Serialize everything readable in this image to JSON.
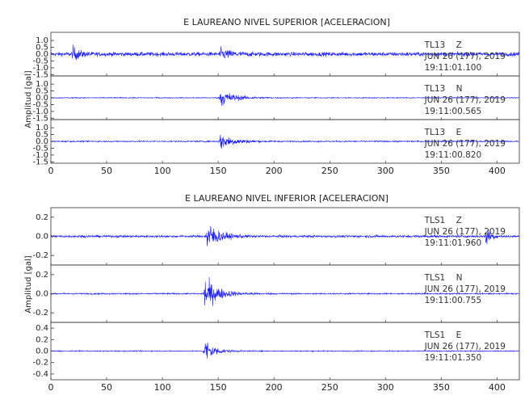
{
  "chart_data": [
    {
      "type": "line",
      "title": "E LAUREANO NIVEL SUPERIOR [ACELERACION]",
      "ylabel": "Amplitud [gal]",
      "xlim": [
        0,
        420
      ],
      "x_ticks": [
        0,
        50,
        100,
        150,
        200,
        250,
        300,
        350,
        400
      ],
      "series_color": "#1a1aff",
      "panels": [
        {
          "station": "TL13",
          "component": "Z",
          "date": "JUN 26 (177), 2019",
          "time": "19:11:01.100",
          "ylim": [
            -1.6,
            1.6
          ],
          "y_ticks": [
            "1.0",
            "0.5",
            "0.0",
            "-0.5",
            "-1.0",
            "-1.5"
          ],
          "y_tick_values": [
            1.0,
            0.5,
            0.0,
            -0.5,
            -1.0,
            -1.5
          ],
          "noise_amplitude": 0.25,
          "events": [
            {
              "t": 20,
              "peak": 0.8,
              "width": 6
            },
            {
              "t": 152,
              "peak": 0.6,
              "width": 10
            }
          ]
        },
        {
          "station": "TL13",
          "component": "N",
          "date": "JUN 26 (177), 2019",
          "time": "19:11:00.565",
          "ylim": [
            -1.6,
            1.6
          ],
          "y_ticks": [
            "1.0",
            "0.5",
            "0.0",
            "-0.5",
            "-1.0",
            "-1.5"
          ],
          "y_tick_values": [
            1.0,
            0.5,
            0.0,
            -0.5,
            -1.0,
            -1.5
          ],
          "noise_amplitude": 0.06,
          "events": [
            {
              "t": 152,
              "peak": 1.1,
              "width": 12
            }
          ]
        },
        {
          "station": "TL13",
          "component": "E",
          "date": "JUN 26 (177), 2019",
          "time": "19:11:00.820",
          "ylim": [
            -1.6,
            1.6
          ],
          "y_ticks": [
            "1.0",
            "0.5",
            "0.0",
            "-0.5",
            "-1.0",
            "-1.5"
          ],
          "y_tick_values": [
            1.0,
            0.5,
            0.0,
            -0.5,
            -1.0,
            -1.5
          ],
          "noise_amplitude": 0.08,
          "events": [
            {
              "t": 152,
              "peak": 1.0,
              "width": 12
            }
          ]
        }
      ]
    },
    {
      "type": "line",
      "title": "E LAUREANO NIVEL INFERIOR [ACELERACION]",
      "ylabel": "Amplitud [gal]",
      "xlim": [
        0,
        420
      ],
      "x_ticks": [
        0,
        50,
        100,
        150,
        200,
        250,
        300,
        350,
        400
      ],
      "series_color": "#1a1aff",
      "panels": [
        {
          "station": "TLS1",
          "component": "Z",
          "date": "JUN 26 (177), 2019",
          "time": "19:11:01.960",
          "ylim": [
            -0.3,
            0.3
          ],
          "y_ticks": [
            "0.2",
            "0.0",
            "-0.2"
          ],
          "y_tick_values": [
            0.2,
            0.0,
            -0.2
          ],
          "noise_amplitude": 0.02,
          "events": [
            {
              "t": 140,
              "peak": 0.26,
              "width": 10
            },
            {
              "t": 390,
              "peak": 0.18,
              "width": 4
            }
          ]
        },
        {
          "station": "TLS1",
          "component": "N",
          "date": "JUN 26 (177), 2019",
          "time": "19:11:00.755",
          "ylim": [
            -0.3,
            0.3
          ],
          "y_ticks": [
            "0.2",
            "0.0",
            "-0.2"
          ],
          "y_tick_values": [
            0.2,
            0.0,
            -0.2
          ],
          "noise_amplitude": 0.012,
          "events": [
            {
              "t": 138,
              "peak": 0.28,
              "width": 12
            }
          ]
        },
        {
          "station": "TLS1",
          "component": "E",
          "date": "JUN 26 (177), 2019",
          "time": "19:11:01.350",
          "ylim": [
            -0.5,
            0.5
          ],
          "y_ticks": [
            "0.4",
            "0.2",
            "0.0",
            "-0.2",
            "-0.4"
          ],
          "y_tick_values": [
            0.4,
            0.2,
            0.0,
            -0.2,
            -0.4
          ],
          "noise_amplitude": 0.015,
          "events": [
            {
              "t": 138,
              "peak": 0.38,
              "width": 8
            }
          ]
        }
      ]
    }
  ]
}
